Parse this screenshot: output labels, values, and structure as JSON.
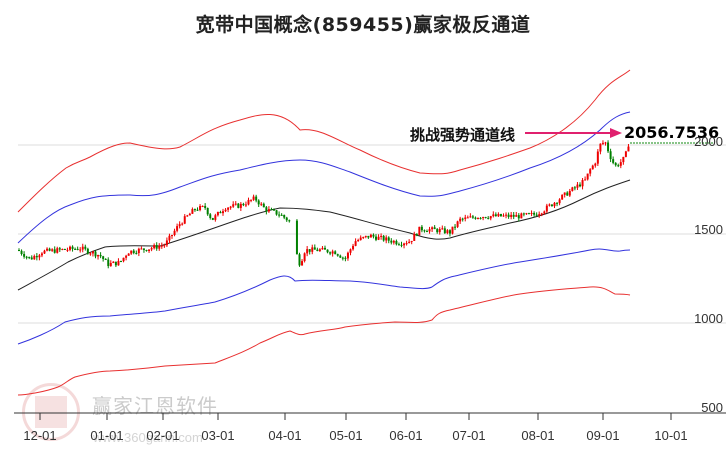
{
  "title": "宽带中国概念(859455)赢家极反通道",
  "annotation": {
    "label": "挑战强势通道线",
    "value": "2056.7536",
    "arrow_color": "#e0206e"
  },
  "watermark": {
    "brand": "赢家江恩软件",
    "url": "www.360gann.com"
  },
  "colors": {
    "up": "#ee0000",
    "down": "#008000",
    "outer_band": "#e83030",
    "inner_band": "#3333dd",
    "mid_line": "#222222",
    "grid": "#dddddd",
    "dotted_ref": "#118811"
  },
  "chart_data": {
    "type": "candlestick",
    "title": "宽带中国概念(859455)赢家极反通道",
    "xlabel": "",
    "ylabel": "",
    "ylim": [
      480,
      2320
    ],
    "y_ticks": [
      500,
      1000,
      1500,
      2000
    ],
    "x_ticks": [
      "12-01",
      "01-01",
      "02-01",
      "03-01",
      "04-01",
      "05-01",
      "06-01",
      "07-01",
      "08-01",
      "09-01",
      "10-01"
    ],
    "grid": "horizontal",
    "annotations": [
      {
        "text": "挑战强势通道线",
        "value": 2056.7536
      }
    ],
    "series": [
      {
        "name": "upper_outer_band",
        "color": "red",
        "points": [
          [
            "11-20",
            1690
          ],
          [
            "12-15",
            1900
          ],
          [
            "01-10",
            2000
          ],
          [
            "02-01",
            1985
          ],
          [
            "03-01",
            2070
          ],
          [
            "03-20",
            2100
          ],
          [
            "04-01",
            2130
          ],
          [
            "05-01",
            1990
          ],
          [
            "06-01",
            1830
          ],
          [
            "06-15",
            1820
          ],
          [
            "07-15",
            1880
          ],
          [
            "08-10",
            1940
          ],
          [
            "09-01",
            2160
          ],
          [
            "09-20",
            2320
          ]
        ]
      },
      {
        "name": "upper_inner_band",
        "color": "blue",
        "points": [
          [
            "11-20",
            1450
          ],
          [
            "12-15",
            1620
          ],
          [
            "01-10",
            1700
          ],
          [
            "02-01",
            1690
          ],
          [
            "03-01",
            1770
          ],
          [
            "03-20",
            1810
          ],
          [
            "04-01",
            1840
          ],
          [
            "05-01",
            1760
          ],
          [
            "06-01",
            1650
          ],
          [
            "06-15",
            1650
          ],
          [
            "07-15",
            1700
          ],
          [
            "08-10",
            1760
          ],
          [
            "09-01",
            1950
          ],
          [
            "09-20",
            2060
          ]
        ]
      },
      {
        "name": "middle_line",
        "color": "black",
        "points": [
          [
            "11-20",
            1190
          ],
          [
            "12-15",
            1340
          ],
          [
            "01-10",
            1420
          ],
          [
            "02-01",
            1420
          ],
          [
            "03-01",
            1500
          ],
          [
            "03-20",
            1550
          ],
          [
            "04-01",
            1590
          ],
          [
            "05-01",
            1550
          ],
          [
            "06-01",
            1480
          ],
          [
            "06-15",
            1470
          ],
          [
            "07-15",
            1530
          ],
          [
            "08-10",
            1580
          ],
          [
            "09-01",
            1690
          ],
          [
            "09-20",
            1760
          ]
        ]
      },
      {
        "name": "lower_inner_band",
        "color": "blue",
        "points": [
          [
            "11-20",
            870
          ],
          [
            "12-15",
            960
          ],
          [
            "01-10",
            1005
          ],
          [
            "02-01",
            1015
          ],
          [
            "03-01",
            1070
          ],
          [
            "03-20",
            1140
          ],
          [
            "04-01",
            1190
          ],
          [
            "05-01",
            1160
          ],
          [
            "06-01",
            1130
          ],
          [
            "06-15",
            1130
          ],
          [
            "07-15",
            1200
          ],
          [
            "08-10",
            1270
          ],
          [
            "09-01",
            1380
          ],
          [
            "09-20",
            1390
          ]
        ]
      },
      {
        "name": "lower_outer_band",
        "color": "red",
        "points": [
          [
            "11-20",
            600
          ],
          [
            "12-15",
            680
          ],
          [
            "01-10",
            740
          ],
          [
            "02-01",
            755
          ],
          [
            "03-01",
            800
          ],
          [
            "03-20",
            870
          ],
          [
            "04-01",
            930
          ],
          [
            "05-01",
            960
          ],
          [
            "06-01",
            950
          ],
          [
            "06-15",
            960
          ],
          [
            "07-15",
            1050
          ],
          [
            "08-10",
            1110
          ],
          [
            "09-01",
            1080
          ],
          [
            "09-20",
            1055
          ]
        ]
      },
      {
        "name": "price_close",
        "color": "red/green candles",
        "points": [
          [
            "11-20",
            1410
          ],
          [
            "12-01",
            1350
          ],
          [
            "12-15",
            1410
          ],
          [
            "01-01",
            1320
          ],
          [
            "01-10",
            1310
          ],
          [
            "01-20",
            1420
          ],
          [
            "02-01",
            1430
          ],
          [
            "02-15",
            1620
          ],
          [
            "03-01",
            1640
          ],
          [
            "03-20",
            1700
          ],
          [
            "04-01",
            1570
          ],
          [
            "04-05",
            1390
          ],
          [
            "04-10",
            1350
          ],
          [
            "05-01",
            1440
          ],
          [
            "05-15",
            1480
          ],
          [
            "06-01",
            1450
          ],
          [
            "06-15",
            1530
          ],
          [
            "07-01",
            1540
          ],
          [
            "07-15",
            1600
          ],
          [
            "08-01",
            1620
          ],
          [
            "08-15",
            1700
          ],
          [
            "09-01",
            2010
          ],
          [
            "09-10",
            1880
          ],
          [
            "09-20",
            2040
          ]
        ]
      }
    ]
  },
  "y_labels": [
    "2000",
    "1500",
    "1000",
    "500"
  ],
  "x_labels": [
    "12-01",
    "01-01",
    "02-01",
    "03-01",
    "04-01",
    "05-01",
    "06-01",
    "07-01",
    "08-01",
    "09-01",
    "10-01"
  ]
}
